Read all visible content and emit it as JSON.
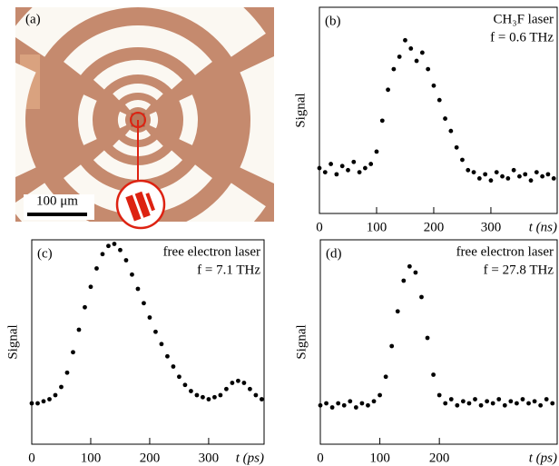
{
  "figure": {
    "panel_a": {
      "label": "(a)",
      "scale_bar": "100 μm"
    }
  },
  "chart_data": [
    {
      "type": "scatter",
      "panel_label": "(b)",
      "annotations": [
        "CH₃F laser",
        "f = 0.6 THz"
      ],
      "y_label": "Signal",
      "x_label": "t (ns)",
      "color": "#000000",
      "x": [
        0,
        10,
        20,
        30,
        40,
        50,
        60,
        70,
        80,
        90,
        100,
        110,
        120,
        130,
        140,
        150,
        160,
        170,
        180,
        190,
        200,
        210,
        220,
        230,
        240,
        250,
        260,
        270,
        280,
        290,
        300,
        310,
        320,
        330,
        340,
        350,
        360,
        370,
        380,
        390,
        400,
        410
      ],
      "values": [
        0.22,
        0.2,
        0.24,
        0.19,
        0.23,
        0.21,
        0.25,
        0.2,
        0.22,
        0.24,
        0.3,
        0.45,
        0.6,
        0.7,
        0.76,
        0.84,
        0.8,
        0.74,
        0.78,
        0.7,
        0.62,
        0.55,
        0.46,
        0.4,
        0.32,
        0.26,
        0.21,
        0.2,
        0.17,
        0.19,
        0.16,
        0.2,
        0.18,
        0.17,
        0.21,
        0.18,
        0.19,
        0.16,
        0.2,
        0.18,
        0.19,
        0.17
      ],
      "xlim": [
        0,
        416
      ],
      "ylim": [
        0,
        1
      ],
      "xticks": [
        0,
        100,
        200,
        300
      ]
    },
    {
      "type": "scatter",
      "panel_label": "(c)",
      "annotations": [
        "free electron laser",
        "f = 7.1 THz"
      ],
      "y_label": "Signal",
      "x_label": "t (ps)",
      "color": "#000000",
      "x": [
        0,
        10,
        20,
        30,
        40,
        50,
        60,
        70,
        80,
        90,
        100,
        110,
        120,
        130,
        140,
        150,
        160,
        170,
        180,
        190,
        200,
        210,
        220,
        230,
        240,
        250,
        260,
        270,
        280,
        290,
        300,
        310,
        320,
        330,
        340,
        350,
        360,
        370,
        380,
        390
      ],
      "values": [
        0.2,
        0.2,
        0.21,
        0.22,
        0.24,
        0.28,
        0.35,
        0.45,
        0.56,
        0.67,
        0.77,
        0.86,
        0.93,
        0.97,
        0.98,
        0.95,
        0.9,
        0.83,
        0.76,
        0.69,
        0.62,
        0.55,
        0.49,
        0.43,
        0.38,
        0.33,
        0.29,
        0.26,
        0.24,
        0.23,
        0.22,
        0.23,
        0.24,
        0.27,
        0.3,
        0.31,
        0.3,
        0.27,
        0.24,
        0.22
      ],
      "xlim": [
        0,
        394
      ],
      "ylim": [
        0,
        1
      ],
      "xticks": [
        0,
        100,
        200,
        300
      ]
    },
    {
      "type": "scatter",
      "panel_label": "(d)",
      "annotations": [
        "free electron laser",
        "f = 27.8 THz"
      ],
      "y_label": "Signal",
      "x_label": "t (ps)",
      "color": "#000000",
      "x": [
        0,
        10,
        20,
        30,
        40,
        50,
        60,
        70,
        80,
        90,
        100,
        110,
        120,
        130,
        140,
        150,
        160,
        170,
        180,
        190,
        200,
        210,
        220,
        230,
        240,
        250,
        260,
        270,
        280,
        290,
        300,
        310,
        320,
        330,
        340,
        350,
        360,
        370,
        380,
        390
      ],
      "values": [
        0.19,
        0.2,
        0.18,
        0.2,
        0.19,
        0.21,
        0.18,
        0.2,
        0.19,
        0.21,
        0.24,
        0.33,
        0.48,
        0.65,
        0.8,
        0.87,
        0.84,
        0.72,
        0.52,
        0.34,
        0.24,
        0.2,
        0.22,
        0.19,
        0.21,
        0.2,
        0.22,
        0.19,
        0.21,
        0.2,
        0.22,
        0.19,
        0.21,
        0.2,
        0.22,
        0.2,
        0.21,
        0.19,
        0.22,
        0.2
      ],
      "xlim": [
        0,
        398
      ],
      "ylim": [
        0,
        1
      ],
      "xticks": [
        0,
        100,
        200
      ]
    }
  ]
}
